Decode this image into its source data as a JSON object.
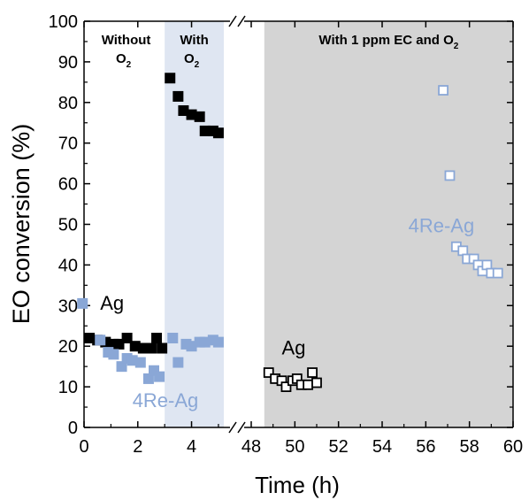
{
  "chart_data": {
    "type": "scatter",
    "title": "",
    "xlabel": "Time (h)",
    "ylabel": "EO conversion (%)",
    "ylim": [
      0,
      100
    ],
    "y_ticks": [
      0,
      10,
      20,
      30,
      40,
      50,
      60,
      70,
      80,
      90,
      100
    ],
    "axis_break": "between 5.2 h and 48 h",
    "x_segments": [
      {
        "xlim": [
          0,
          5.2
        ],
        "ticks": [
          0,
          2,
          4
        ]
      },
      {
        "xlim": [
          48,
          60
        ],
        "ticks": [
          48,
          50,
          52,
          54,
          56,
          58,
          60
        ]
      }
    ],
    "regions": [
      {
        "xlim": [
          0,
          3.0
        ],
        "fill": "#ffffff",
        "label_lines": [
          "Without",
          "O",
          "2"
        ]
      },
      {
        "xlim": [
          3.0,
          5.2
        ],
        "fill": "#dfe6f2",
        "label_lines": [
          "With",
          "O",
          "2"
        ]
      },
      {
        "xlim": [
          48.6,
          60
        ],
        "fill": "#d4d4d4",
        "label_lines": [
          "With 1 ppm EC and O",
          "2"
        ]
      }
    ],
    "series": [
      {
        "name": "Ag",
        "color": "#000000",
        "marker": "square-filled",
        "points": [
          [
            0.2,
            22
          ],
          [
            0.5,
            21.5
          ],
          [
            0.8,
            21
          ],
          [
            1.1,
            20.5
          ],
          [
            1.3,
            20.5
          ],
          [
            1.6,
            22
          ],
          [
            1.9,
            20
          ],
          [
            2.2,
            19.5
          ],
          [
            2.5,
            19.5
          ],
          [
            2.7,
            22
          ],
          [
            2.9,
            19.5
          ],
          [
            3.2,
            86
          ],
          [
            3.5,
            81.5
          ],
          [
            3.7,
            78
          ],
          [
            4.0,
            77
          ],
          [
            4.3,
            76.5
          ],
          [
            4.5,
            73
          ],
          [
            4.8,
            73
          ],
          [
            5.0,
            72.5
          ]
        ]
      },
      {
        "name": "4Re-Ag",
        "color": "#8aa7d6",
        "marker": "square-filled",
        "points": [
          [
            0.6,
            21.5
          ],
          [
            0.9,
            18.5
          ],
          [
            1.1,
            18
          ],
          [
            1.4,
            15
          ],
          [
            1.6,
            17
          ],
          [
            1.8,
            16.5
          ],
          [
            2.1,
            16
          ],
          [
            2.4,
            12
          ],
          [
            2.6,
            14
          ],
          [
            2.8,
            12.5
          ],
          [
            3.3,
            22
          ],
          [
            3.5,
            16
          ],
          [
            3.8,
            20.5
          ],
          [
            4.0,
            20
          ],
          [
            4.3,
            21
          ],
          [
            4.5,
            21
          ],
          [
            4.8,
            21.5
          ],
          [
            5.0,
            21
          ]
        ]
      },
      {
        "name": "Ag",
        "color": "#000000",
        "marker": "square-open",
        "points": [
          [
            48.8,
            13.5
          ],
          [
            49.1,
            12
          ],
          [
            49.4,
            11.5
          ],
          [
            49.6,
            10
          ],
          [
            49.9,
            11.5
          ],
          [
            50.1,
            12
          ],
          [
            50.3,
            10.5
          ],
          [
            50.6,
            10.5
          ],
          [
            50.8,
            13.5
          ],
          [
            51.0,
            11
          ]
        ]
      },
      {
        "name": "4Re-Ag",
        "color": "#8aa7d6",
        "marker": "square-open",
        "points": [
          [
            56.8,
            83
          ],
          [
            57.1,
            62
          ],
          [
            57.4,
            44.5
          ],
          [
            57.7,
            43.5
          ],
          [
            57.9,
            41.5
          ],
          [
            58.2,
            41.5
          ],
          [
            58.4,
            40
          ],
          [
            58.6,
            38.5
          ],
          [
            58.8,
            40
          ],
          [
            59.0,
            38
          ],
          [
            59.3,
            38
          ]
        ]
      }
    ],
    "annotations": [
      {
        "text": "Ag",
        "color": "#000000",
        "at": [
          0.6,
          29
        ],
        "legend_marker": true
      },
      {
        "text": "4Re-Ag",
        "color": "#8aa7d6",
        "at": [
          1.8,
          5
        ]
      },
      {
        "text": "Ag",
        "color": "#000000",
        "at": [
          49.4,
          18
        ]
      },
      {
        "text": "4Re-Ag",
        "color": "#8aa7d6",
        "at": [
          55.2,
          48
        ]
      }
    ]
  }
}
